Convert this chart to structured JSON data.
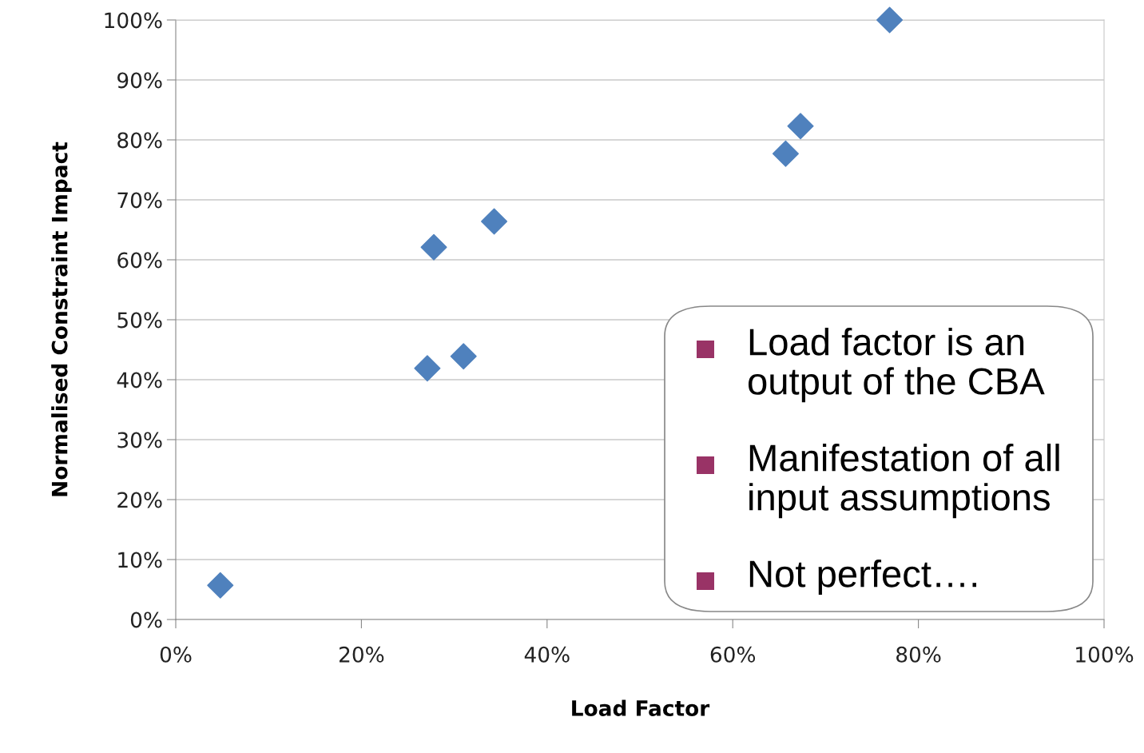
{
  "chart_data": {
    "type": "scatter",
    "xlabel": "Load Factor",
    "ylabel": "Normalised Constraint Impact",
    "x": [
      4.8,
      27.1,
      27.8,
      31.0,
      34.3,
      65.7,
      67.3,
      76.9
    ],
    "series": [
      {
        "color": "#4f81bd",
        "values": [
          5.7,
          41.9,
          62.1,
          43.9,
          66.4,
          77.7,
          82.3,
          100
        ]
      }
    ],
    "xlim": [
      0,
      100
    ],
    "ylim": [
      0,
      100
    ],
    "xticks": [
      {
        "value": 0,
        "label": "0%"
      },
      {
        "value": 20,
        "label": "20%"
      },
      {
        "value": 40,
        "label": "40%"
      },
      {
        "value": 60,
        "label": "60%"
      },
      {
        "value": 80,
        "label": "80%"
      },
      {
        "value": 100,
        "label": "100%"
      }
    ],
    "yticks": [
      {
        "value": 0,
        "label": "0%"
      },
      {
        "value": 10,
        "label": "10%"
      },
      {
        "value": 20,
        "label": "20%"
      },
      {
        "value": 30,
        "label": "30%"
      },
      {
        "value": 40,
        "label": "40%"
      },
      {
        "value": 50,
        "label": "50%"
      },
      {
        "value": 60,
        "label": "60%"
      },
      {
        "value": 70,
        "label": "70%"
      },
      {
        "value": 80,
        "label": "80%"
      },
      {
        "value": 90,
        "label": "90%"
      },
      {
        "value": 100,
        "label": "100%"
      }
    ],
    "grid": "y",
    "marker": "diamond",
    "legend": false,
    "annotations": [
      "Load factor is an\noutput of the CBA",
      "Manifestation of all\ninput assumptions",
      "Not perfect…."
    ]
  }
}
